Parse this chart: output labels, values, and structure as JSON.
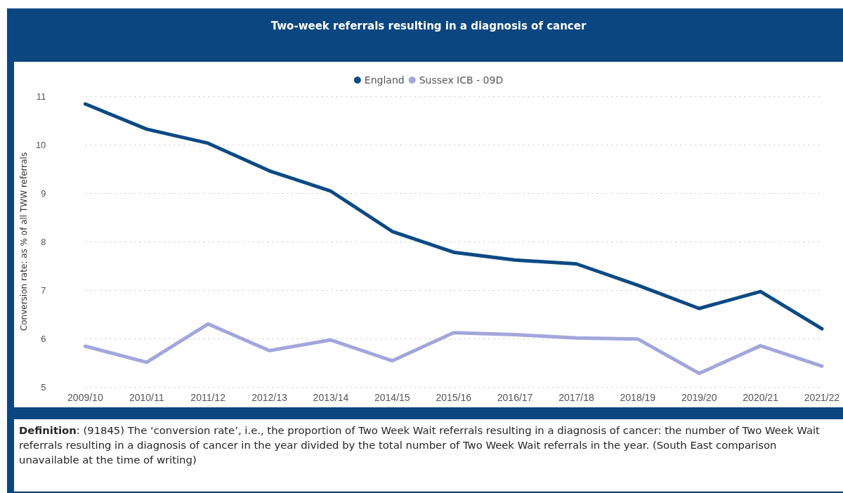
{
  "chart_data": {
    "type": "line",
    "title": "Two-week referrals resulting in a diagnosis of cancer",
    "ylabel": "Conversion rate: as % of all TWW referrals",
    "categories": [
      "2009/10",
      "2010/11",
      "2011/12",
      "2012/13",
      "2013/14",
      "2014/15",
      "2015/16",
      "2016/17",
      "2017/18",
      "2018/19",
      "2019/20",
      "2020/21",
      "2021/22"
    ],
    "series": [
      {
        "name": "England",
        "color": "#0d4a84",
        "values": [
          10.84,
          10.32,
          10.03,
          9.46,
          9.04,
          8.21,
          7.78,
          7.62,
          7.54,
          7.1,
          6.62,
          6.97,
          6.2
        ]
      },
      {
        "name": "Sussex ICB - 09D",
        "color": "#a3a6dc",
        "values": [
          5.84,
          5.51,
          6.3,
          5.75,
          5.97,
          5.54,
          6.12,
          6.08,
          6.01,
          5.99,
          5.28,
          5.85,
          5.43
        ]
      }
    ],
    "ylim": [
      5,
      11
    ],
    "yticks": [
      5,
      6,
      7,
      8,
      9,
      10,
      11
    ],
    "grid": "y",
    "legend": "top",
    "marker": "none",
    "line_style": "solid",
    "annotations": [
      "Definition: (91845) The ‘conversion rate’, i.e., the proportion of Two Week Wait referrals resulting in a diagnosis of cancer: the number of Two Week Wait referrals resulting in a diagnosis of cancer in the year divided by the total number of Two Week Wait referrals in the year. (South East comparison unavailable at the time of writing)"
    ]
  }
}
